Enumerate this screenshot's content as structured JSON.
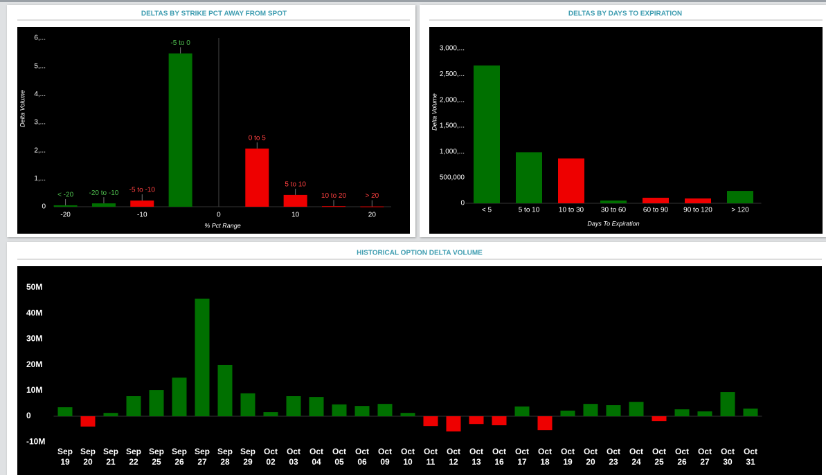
{
  "chart_data": [
    {
      "type": "bar",
      "title": "DELTAS BY STRIKE PCT AWAY FROM SPOT",
      "xlabel": "% Pct Range",
      "ylabel": "Delta Volume",
      "x": [
        -20,
        -15,
        -10,
        -5,
        5,
        10,
        15,
        20
      ],
      "categories": [
        "< -20",
        "-20 to -10",
        "-5 to -10",
        "-5 to 0",
        "0 to 5",
        "5 to 10",
        "10 to 20",
        "> 20"
      ],
      "values": [
        50000,
        120000,
        220000,
        5450000,
        2070000,
        420000,
        20000,
        10000
      ],
      "colors": [
        "#007000",
        "#007000",
        "#ee0000",
        "#007000",
        "#ee0000",
        "#ee0000",
        "#ee0000",
        "#ee0000"
      ],
      "xlim": [
        -21.5,
        22.5
      ],
      "xticks": [
        -20,
        -10,
        0,
        10,
        20
      ],
      "ylim": [
        0,
        6000000
      ],
      "yticks": [
        0,
        {
          "value": 1000000,
          "label": "1,..."
        },
        {
          "value": 2000000,
          "label": "2,..."
        },
        {
          "value": 3000000,
          "label": "3,..."
        },
        {
          "value": 4000000,
          "label": "4,..."
        },
        {
          "value": 5000000,
          "label": "5,..."
        },
        {
          "value": 6000000,
          "label": "6,..."
        }
      ]
    },
    {
      "type": "bar",
      "title": "DELTAS BY DAYS TO EXPIRATION",
      "xlabel": "Days To Expiration",
      "ylabel": "Delta Volume",
      "categories": [
        "< 5",
        "5 to 10",
        "10 to 30",
        "30 to 60",
        "60 to 90",
        "90 to 120",
        "> 120"
      ],
      "values": [
        2670000,
        987000,
        867000,
        53000,
        107000,
        93000,
        240000
      ],
      "colors": [
        "#007000",
        "#007000",
        "#ee0000",
        "#007000",
        "#ee0000",
        "#ee0000",
        "#007000"
      ],
      "ylim": [
        0,
        3000000
      ],
      "yticks": [
        0,
        {
          "value": 500000,
          "label": "500,000"
        },
        {
          "value": 1000000,
          "label": "1,000,..."
        },
        {
          "value": 1500000,
          "label": "1,500,..."
        },
        {
          "value": 2000000,
          "label": "2,000,..."
        },
        {
          "value": 2500000,
          "label": "2,500,..."
        },
        {
          "value": 3000000,
          "label": "3,000,..."
        }
      ]
    },
    {
      "type": "bar",
      "title": "HISTORICAL OPTION DELTA VOLUME",
      "categories": [
        "Sep 19",
        "Sep 20",
        "Sep 21",
        "Sep 22",
        "Sep 25",
        "Sep 26",
        "Sep 27",
        "Sep 28",
        "Sep 29",
        "Oct 02",
        "Oct 03",
        "Oct 04",
        "Oct 05",
        "Oct 06",
        "Oct 09",
        "Oct 10",
        "Oct 11",
        "Oct 12",
        "Oct 13",
        "Oct 16",
        "Oct 17",
        "Oct 18",
        "Oct 19",
        "Oct 20",
        "Oct 23",
        "Oct 24",
        "Oct 25",
        "Oct 26",
        "Oct 27",
        "Oct 30",
        "Oct 31"
      ],
      "values": [
        3500000,
        -4000000,
        1300000,
        7800000,
        10200000,
        15000000,
        45700000,
        19900000,
        8900000,
        1600000,
        7800000,
        7500000,
        4600000,
        4000000,
        4800000,
        1300000,
        -3800000,
        -5900000,
        -3000000,
        -3500000,
        3800000,
        -5400000,
        2200000,
        4800000,
        4300000,
        5600000,
        -1900000,
        2700000,
        1900000,
        9400000,
        3000000
      ],
      "positive_color": "#007000",
      "negative_color": "#ee0000",
      "ylim": [
        -11000000,
        54000000
      ],
      "yticks": [
        {
          "value": -10000000,
          "label": "-10M"
        },
        0,
        {
          "value": 10000000,
          "label": "10M"
        },
        {
          "value": 20000000,
          "label": "20M"
        },
        {
          "value": 30000000,
          "label": "30M"
        },
        {
          "value": 40000000,
          "label": "40M"
        },
        {
          "value": 50000000,
          "label": "50M"
        }
      ]
    }
  ]
}
